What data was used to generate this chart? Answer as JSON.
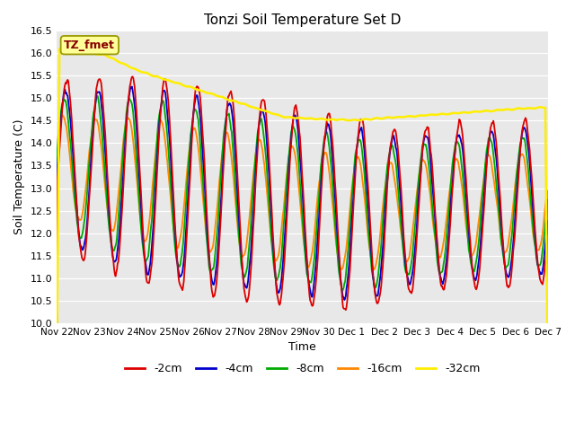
{
  "title": "Tonzi Soil Temperature Set D",
  "xlabel": "Time",
  "ylabel": "Soil Temperature (C)",
  "ylim": [
    10.0,
    16.5
  ],
  "yticks": [
    10.0,
    10.5,
    11.0,
    11.5,
    12.0,
    12.5,
    13.0,
    13.5,
    14.0,
    14.5,
    15.0,
    15.5,
    16.0,
    16.5
  ],
  "xtick_labels": [
    "Nov 22",
    "Nov 23",
    "Nov 24",
    "Nov 25",
    "Nov 26",
    "Nov 27",
    "Nov 28",
    "Nov 29",
    "Nov 30",
    "Dec 1",
    "Dec 2",
    "Dec 3",
    "Dec 4",
    "Dec 5",
    "Dec 6",
    "Dec 7"
  ],
  "legend_labels": [
    "-2cm",
    "-4cm",
    "-8cm",
    "-16cm",
    "-32cm"
  ],
  "legend_colors": [
    "#dd0000",
    "#0000cc",
    "#00aa00",
    "#ff8800",
    "#ffee00"
  ],
  "line_widths": [
    1.3,
    1.3,
    1.3,
    1.3,
    1.8
  ],
  "annotation_text": "TZ_fmet",
  "annotation_color": "#880000",
  "annotation_bg": "#ffff99",
  "annotation_edge": "#999900",
  "plot_bg": "#e8e8e8",
  "grid_color": "#ffffff",
  "n_points": 720
}
